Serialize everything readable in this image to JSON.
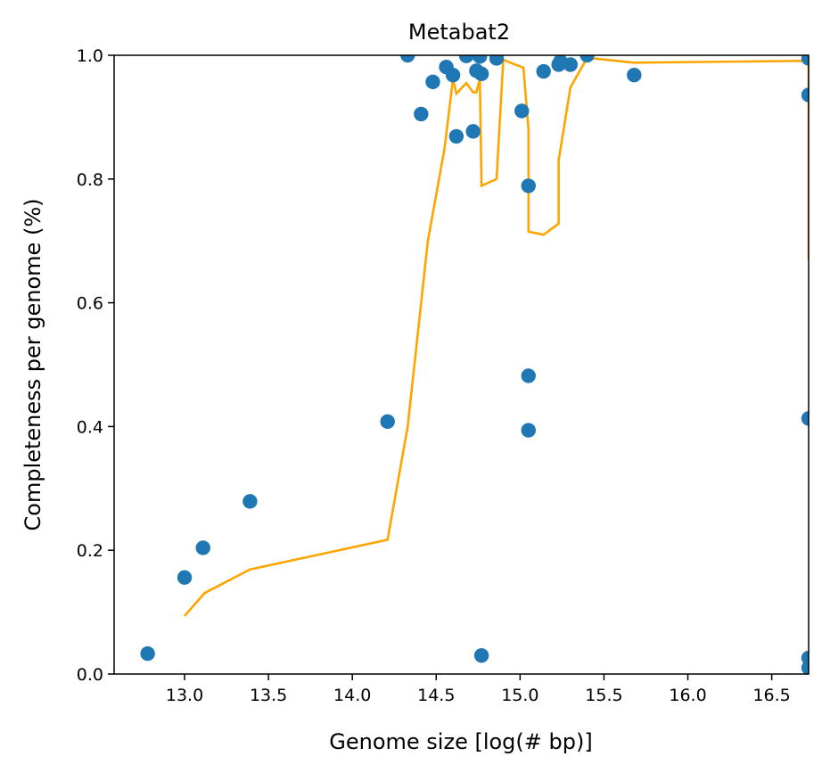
{
  "chart_data": {
    "type": "scatter",
    "title": "Metabat2",
    "xlabel": "Genome size [log(# bp)]",
    "ylabel": "Completeness per genome (%)",
    "xlim": [
      12.58,
      16.72
    ],
    "ylim": [
      0.0,
      1.0
    ],
    "xticks": [
      13.0,
      13.5,
      14.0,
      14.5,
      15.0,
      15.5,
      16.0,
      16.5
    ],
    "xtick_labels": [
      "13.0",
      "13.5",
      "14.0",
      "14.5",
      "15.0",
      "15.5",
      "16.0",
      "16.5"
    ],
    "yticks": [
      0.0,
      0.2,
      0.4,
      0.6,
      0.8,
      1.0
    ],
    "ytick_labels": [
      "0.0",
      "0.2",
      "0.4",
      "0.6",
      "0.8",
      "1.0"
    ],
    "grid": false,
    "legend": "none",
    "series": [
      {
        "kind": "scatter",
        "color": "#1f77b4",
        "points": [
          [
            12.78,
            0.033
          ],
          [
            13.0,
            0.156
          ],
          [
            13.11,
            0.204
          ],
          [
            13.39,
            0.279
          ],
          [
            14.21,
            0.408
          ],
          [
            14.33,
            1.0
          ],
          [
            14.41,
            0.905
          ],
          [
            14.48,
            0.957
          ],
          [
            14.56,
            0.981
          ],
          [
            14.6,
            0.968
          ],
          [
            14.62,
            0.869
          ],
          [
            14.68,
            0.999
          ],
          [
            14.72,
            0.877
          ],
          [
            14.74,
            0.975
          ],
          [
            14.76,
            0.998
          ],
          [
            14.77,
            0.97
          ],
          [
            14.77,
            0.03
          ],
          [
            14.86,
            0.995
          ],
          [
            15.01,
            0.91
          ],
          [
            15.05,
            0.789
          ],
          [
            15.05,
            0.482
          ],
          [
            15.05,
            0.394
          ],
          [
            15.14,
            0.974
          ],
          [
            15.23,
            0.985
          ],
          [
            15.24,
            0.99
          ],
          [
            15.3,
            0.985
          ],
          [
            15.4,
            1.0
          ],
          [
            15.68,
            0.968
          ],
          [
            16.72,
            0.995
          ],
          [
            16.72,
            0.936
          ],
          [
            16.72,
            0.413
          ],
          [
            16.72,
            0.026
          ],
          [
            16.72,
            0.01
          ]
        ]
      },
      {
        "kind": "line",
        "color": "#ffa500",
        "points": [
          [
            13.0,
            0.094
          ],
          [
            13.12,
            0.131
          ],
          [
            13.39,
            0.169
          ],
          [
            14.21,
            0.217
          ],
          [
            14.33,
            0.4
          ],
          [
            14.45,
            0.7
          ],
          [
            14.55,
            0.85
          ],
          [
            14.6,
            0.962
          ],
          [
            14.62,
            0.938
          ],
          [
            14.68,
            0.955
          ],
          [
            14.72,
            0.94
          ],
          [
            14.74,
            0.94
          ],
          [
            14.76,
            0.962
          ],
          [
            14.77,
            0.789
          ],
          [
            14.86,
            0.8
          ],
          [
            14.9,
            0.993
          ],
          [
            14.97,
            0.985
          ],
          [
            15.02,
            0.98
          ],
          [
            15.05,
            0.88
          ],
          [
            15.05,
            0.715
          ],
          [
            15.14,
            0.71
          ],
          [
            15.23,
            0.728
          ],
          [
            15.23,
            0.83
          ],
          [
            15.3,
            0.948
          ],
          [
            15.4,
            0.996
          ],
          [
            15.68,
            0.988
          ],
          [
            16.72,
            0.991
          ],
          [
            16.72,
            0.67
          ]
        ]
      }
    ]
  }
}
